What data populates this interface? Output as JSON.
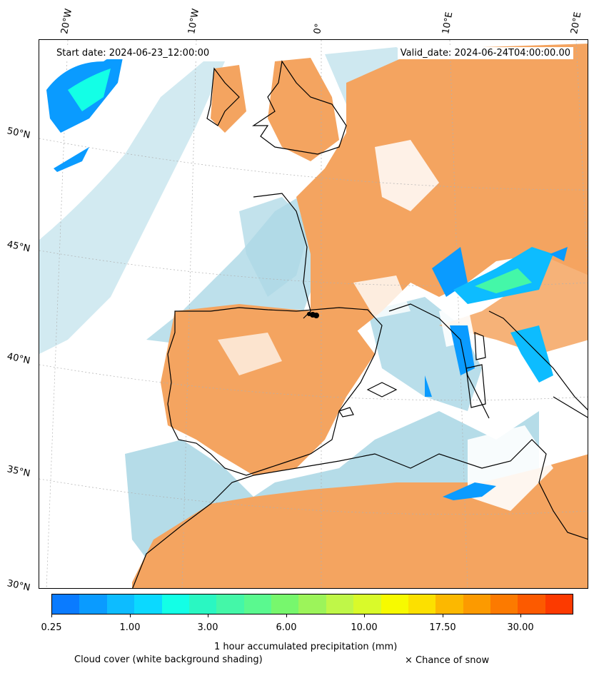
{
  "header": {
    "start_label": "Start date: 2024-06-23_12:00:00",
    "valid_label": "Valid_date: 2024-06-24T04:00:00.00"
  },
  "longitude_labels": [
    "20°W",
    "10°W",
    "0°",
    "10°E",
    "20°E"
  ],
  "latitude_labels": [
    "50°N",
    "45°N",
    "40°N",
    "35°N",
    "30°N"
  ],
  "colorbar": {
    "colors": [
      "#0a7bff",
      "#0a9bff",
      "#0dbcff",
      "#0bd9ff",
      "#13ffe6",
      "#2af7c2",
      "#44f7a8",
      "#5af98f",
      "#77f76d",
      "#9cf45a",
      "#bff748",
      "#d9fa2a",
      "#f7fa00",
      "#fce000",
      "#fcb800",
      "#fc9a00",
      "#fc7a00",
      "#fc5a00",
      "#fc3a00"
    ],
    "tick_labels": [
      "0.25",
      "1.00",
      "3.00",
      "6.00",
      "10.00",
      "17.50",
      "30.00"
    ],
    "label": "1 hour accumulated precipitation (mm)"
  },
  "legend": {
    "cloud_cover": "Cloud cover (white background shading)",
    "snow": "× Chance of snow"
  },
  "colors": {
    "land_orange": "#f4a460",
    "cloud_blue": "#add8e6",
    "coast": "#000000"
  }
}
